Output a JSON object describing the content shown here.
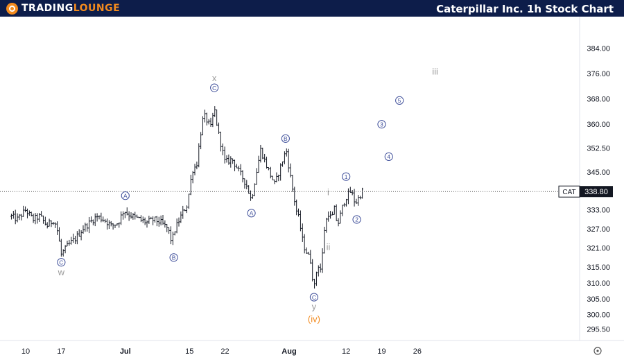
{
  "header": {
    "logo_part1": "TRADING",
    "logo_part2": "LOUNGE",
    "title": "Caterpillar Inc. 1h Stock Chart"
  },
  "colors": {
    "topbar": "#0d1d4a",
    "brand_orange": "#f28a1e",
    "wave_label": "#3f4f9a",
    "wave_label_grey": "#9a9a9a",
    "wave_label_orange": "#f28a1e",
    "price_tag": "#131722"
  },
  "chart_data": {
    "type": "ohlc",
    "ticker": "CAT",
    "last_price": 338.8,
    "ylim": [
      291.0,
      386.0
    ],
    "y_ticks": [
      "384.00",
      "376.00",
      "368.00",
      "360.00",
      "352.50",
      "345.00",
      "333.00",
      "327.00",
      "321.00",
      "315.00",
      "310.00",
      "305.00",
      "300.00",
      "295.50"
    ],
    "x_ticks": [
      {
        "label": "10",
        "t": 0
      },
      {
        "label": "17",
        "t": 5
      },
      {
        "label": "Jul",
        "t": 14
      },
      {
        "label": "15",
        "t": 23
      },
      {
        "label": "22",
        "t": 28
      },
      {
        "label": "Aug",
        "t": 37
      },
      {
        "label": "12",
        "t": 45
      },
      {
        "label": "19",
        "t": 50
      },
      {
        "label": "26",
        "t": 55
      }
    ],
    "price_path": [
      [
        -2,
        331
      ],
      [
        -1.2,
        330
      ],
      [
        0,
        333
      ],
      [
        1,
        330
      ],
      [
        2,
        331
      ],
      [
        3,
        328
      ],
      [
        4,
        330
      ],
      [
        4.5,
        326
      ],
      [
        5,
        319
      ],
      [
        6,
        322
      ],
      [
        7,
        324
      ],
      [
        8,
        327
      ],
      [
        9,
        329
      ],
      [
        10,
        331
      ],
      [
        11,
        330
      ],
      [
        12,
        328
      ],
      [
        13,
        329
      ],
      [
        13.8,
        333
      ],
      [
        14.2,
        332
      ],
      [
        15,
        331
      ],
      [
        16,
        330
      ],
      [
        17,
        329
      ],
      [
        18,
        330
      ],
      [
        19,
        329
      ],
      [
        20,
        327
      ],
      [
        20.5,
        323
      ],
      [
        21,
        327
      ],
      [
        22,
        332
      ],
      [
        22.8,
        335
      ],
      [
        23,
        340
      ],
      [
        23.5,
        346
      ],
      [
        24,
        347
      ],
      [
        24.5,
        356
      ],
      [
        25,
        363
      ],
      [
        26,
        359
      ],
      [
        26.5,
        365
      ],
      [
        27,
        358
      ],
      [
        27.5,
        353
      ],
      [
        28,
        348
      ],
      [
        29,
        349
      ],
      [
        30,
        345
      ],
      [
        31,
        341
      ],
      [
        31.7,
        336
      ],
      [
        32,
        340
      ],
      [
        32.5,
        346
      ],
      [
        33,
        352
      ],
      [
        34,
        346
      ],
      [
        35,
        341
      ],
      [
        36,
        348
      ],
      [
        36.6,
        352
      ],
      [
        37,
        346
      ],
      [
        37.6,
        338
      ],
      [
        38,
        333
      ],
      [
        38.4,
        330
      ],
      [
        39,
        322
      ],
      [
        40,
        317
      ],
      [
        40.5,
        308
      ],
      [
        41,
        316
      ],
      [
        41.5,
        314
      ],
      [
        42,
        328
      ],
      [
        42.5,
        332
      ],
      [
        43,
        330
      ],
      [
        43.3,
        334
      ],
      [
        43.8,
        328
      ],
      [
        44.5,
        334
      ],
      [
        45,
        337
      ],
      [
        45.7,
        339
      ],
      [
        46.3,
        335
      ],
      [
        46.8,
        337
      ],
      [
        47.3,
        339
      ]
    ],
    "wave_labels": [
      {
        "text": "C",
        "t": 5,
        "price": 316.5,
        "style": "circle"
      },
      {
        "text": "w",
        "t": 5,
        "price": 313.3,
        "style": "grey"
      },
      {
        "text": "A",
        "t": 14,
        "price": 337.5,
        "style": "circle"
      },
      {
        "text": "B",
        "t": 20.8,
        "price": 318.0,
        "style": "circle"
      },
      {
        "text": "x",
        "t": 26.5,
        "price": 374.5,
        "style": "grey"
      },
      {
        "text": "C",
        "t": 26.5,
        "price": 371.5,
        "style": "circle"
      },
      {
        "text": "A",
        "t": 31.7,
        "price": 332.0,
        "style": "circle"
      },
      {
        "text": "B",
        "t": 36.5,
        "price": 355.5,
        "style": "circle"
      },
      {
        "text": "C",
        "t": 40.5,
        "price": 305.5,
        "style": "circle"
      },
      {
        "text": "y",
        "t": 40.5,
        "price": 302.5,
        "style": "grey"
      },
      {
        "text": "(iv)",
        "t": 40.5,
        "price": 298.5,
        "style": "orange"
      },
      {
        "text": "i",
        "t": 42.5,
        "price": 338.5,
        "style": "grey"
      },
      {
        "text": "ii",
        "t": 42.5,
        "price": 321.3,
        "style": "grey"
      },
      {
        "text": "1",
        "t": 45.0,
        "price": 343.5,
        "style": "circle"
      },
      {
        "text": "2",
        "t": 46.5,
        "price": 330.0,
        "style": "circle"
      },
      {
        "text": "3",
        "t": 50.0,
        "price": 360.0,
        "style": "circle"
      },
      {
        "text": "4",
        "t": 51.0,
        "price": 349.8,
        "style": "circle"
      },
      {
        "text": "5",
        "t": 52.5,
        "price": 367.5,
        "style": "circle"
      },
      {
        "text": "iii",
        "t": 57.5,
        "price": 376.5,
        "style": "grey"
      }
    ]
  }
}
